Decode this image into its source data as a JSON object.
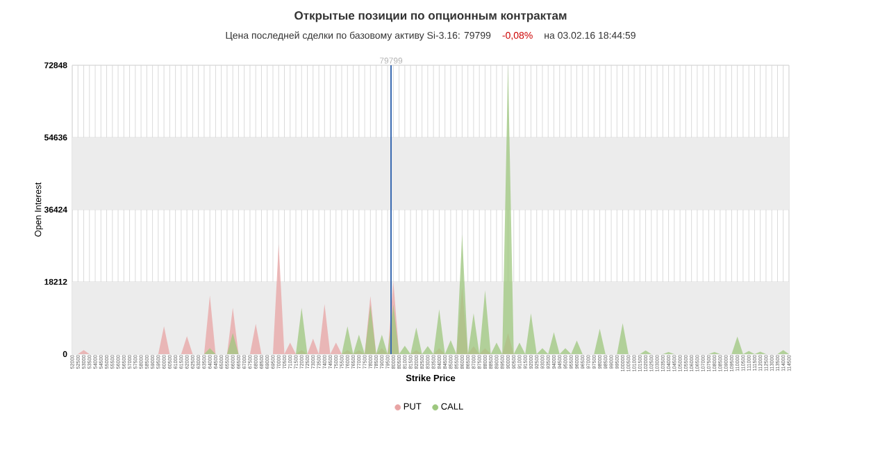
{
  "chart_data": {
    "type": "area",
    "title": "Открытые позиции по опционным контрактам",
    "subtitle": "Цена последней сделки по базовому активу Si-3.16: 79799",
    "annotations": [
      "-0,08%",
      "на 03.02.16 18:44:59"
    ],
    "xlabel": "Strike Price",
    "ylabel": "Open Interest",
    "x": [
      52000,
      52500,
      53000,
      53500,
      54000,
      54500,
      55000,
      55500,
      56000,
      56500,
      57000,
      57500,
      58000,
      58500,
      59000,
      59500,
      60000,
      60500,
      61000,
      61500,
      62000,
      62500,
      63000,
      63500,
      64000,
      64500,
      65000,
      65500,
      66000,
      66500,
      67000,
      67500,
      68000,
      68500,
      69000,
      69500,
      70000,
      70500,
      71000,
      71500,
      72000,
      72500,
      73000,
      73500,
      74000,
      74500,
      75000,
      75500,
      76000,
      76500,
      77000,
      77500,
      78000,
      78500,
      79000,
      79500,
      80000,
      80500,
      81000,
      81500,
      82000,
      82500,
      83000,
      83500,
      84000,
      84500,
      85000,
      85500,
      86000,
      86500,
      87000,
      87500,
      88000,
      88500,
      89000,
      89500,
      90000,
      90500,
      91000,
      91500,
      92000,
      92500,
      93000,
      93500,
      94000,
      94500,
      95000,
      95500,
      96000,
      96500,
      97000,
      97500,
      98000,
      98500,
      99000,
      99500,
      100000,
      100500,
      101000,
      101500,
      102000,
      102500,
      103000,
      103500,
      104000,
      104500,
      105000,
      105500,
      106000,
      106500,
      107000,
      107500,
      108000,
      108500,
      109000,
      109500,
      110000,
      110500,
      111000,
      111500,
      112000,
      112500,
      113000,
      113500,
      114000,
      114500
    ],
    "series": [
      {
        "name": "PUT",
        "color": "#e8a4a4",
        "values": [
          0,
          0,
          1000,
          0,
          0,
          0,
          0,
          0,
          0,
          0,
          0,
          0,
          0,
          0,
          0,
          0,
          7000,
          0,
          0,
          0,
          4500,
          0,
          0,
          0,
          14800,
          0,
          0,
          0,
          11700,
          0,
          0,
          0,
          7600,
          0,
          0,
          0,
          27700,
          0,
          2900,
          0,
          1000,
          0,
          3900,
          0,
          12600,
          0,
          2900,
          0,
          1000,
          0,
          1000,
          0,
          14600,
          0,
          1500,
          0,
          18400,
          0,
          0,
          0,
          1000,
          0,
          0,
          0,
          1500,
          0,
          0,
          0,
          17000,
          0,
          2000,
          0,
          1500,
          0,
          0,
          0,
          5300,
          0,
          0,
          0,
          0,
          0,
          0,
          0,
          0,
          0,
          0,
          0,
          0,
          0,
          0,
          0,
          0,
          0,
          0,
          0,
          0,
          0,
          0,
          0,
          0,
          0,
          0,
          0,
          0,
          0,
          0,
          0,
          0,
          0,
          0,
          0,
          0,
          0,
          0,
          0,
          0,
          0,
          0,
          0,
          0,
          0,
          0,
          0,
          0,
          0
        ]
      },
      {
        "name": "CALL",
        "color": "#9dc77e",
        "values": [
          0,
          0,
          0,
          0,
          0,
          0,
          0,
          0,
          0,
          0,
          0,
          0,
          0,
          0,
          0,
          0,
          0,
          0,
          0,
          0,
          0,
          0,
          0,
          0,
          1500,
          0,
          0,
          0,
          5300,
          0,
          0,
          0,
          0,
          0,
          0,
          0,
          0,
          0,
          0,
          0,
          11700,
          0,
          0,
          0,
          0,
          0,
          0,
          0,
          7000,
          0,
          4900,
          0,
          12300,
          0,
          4900,
          0,
          12500,
          0,
          2100,
          0,
          6700,
          0,
          2000,
          0,
          11300,
          0,
          3500,
          0,
          30200,
          0,
          10300,
          0,
          16100,
          0,
          2900,
          0,
          72800,
          0,
          2900,
          0,
          10300,
          0,
          1500,
          0,
          5500,
          0,
          1500,
          0,
          3400,
          0,
          0,
          0,
          6400,
          0,
          0,
          0,
          7800,
          0,
          0,
          0,
          900,
          0,
          0,
          0,
          500,
          0,
          0,
          0,
          0,
          0,
          0,
          0,
          500,
          0,
          0,
          0,
          4400,
          0,
          800,
          0,
          600,
          0,
          0,
          0,
          1000,
          0
        ]
      }
    ],
    "xlim": [
      52000,
      114500
    ],
    "xticks": [
      52000,
      52500,
      53000,
      53500,
      54000,
      54500,
      55000,
      55500,
      56000,
      56500,
      57000,
      57500,
      58000,
      58500,
      59000,
      59500,
      60000,
      60500,
      61000,
      61500,
      62000,
      62500,
      63000,
      63500,
      64000,
      64500,
      65000,
      65500,
      66000,
      66500,
      67000,
      67500,
      68000,
      68500,
      69000,
      69500,
      70000,
      70500,
      71000,
      71500,
      72000,
      72500,
      73000,
      73500,
      74000,
      74500,
      75000,
      75500,
      76000,
      76500,
      77000,
      77500,
      78000,
      78500,
      79000,
      79500,
      80000,
      80500,
      81000,
      81500,
      82000,
      82500,
      83000,
      83500,
      84000,
      84500,
      85000,
      85500,
      86000,
      86500,
      87000,
      87500,
      88000,
      88500,
      89000,
      89500,
      90000,
      90500,
      91000,
      91500,
      92000,
      92500,
      93000,
      93500,
      94000,
      94500,
      95000,
      95500,
      96000,
      96500,
      97000,
      97500,
      98000,
      98500,
      99000,
      99500,
      100000,
      100500,
      101000,
      101500,
      102000,
      102500,
      103000,
      103500,
      104000,
      104500,
      105000,
      105500,
      106000,
      106500,
      107000,
      107500,
      108000,
      108500,
      109000,
      109500,
      110000,
      110500,
      111000,
      111500,
      112000,
      112500,
      113000,
      113500,
      114000,
      114500
    ],
    "ylim": [
      0,
      72848
    ],
    "yticks": [
      0,
      18212,
      36424,
      54636,
      72848
    ],
    "ref_lines": [
      {
        "axis": "x",
        "value": 79799,
        "label": "79799",
        "color": "#3a6ab0"
      }
    ],
    "bands": [
      {
        "axis": "y",
        "from": 0,
        "to": 18212,
        "color": "#ececec"
      },
      {
        "axis": "y",
        "from": 36424,
        "to": 54636,
        "color": "#ececec"
      }
    ],
    "grid": true,
    "legend": "bottom",
    "marker": "none"
  }
}
